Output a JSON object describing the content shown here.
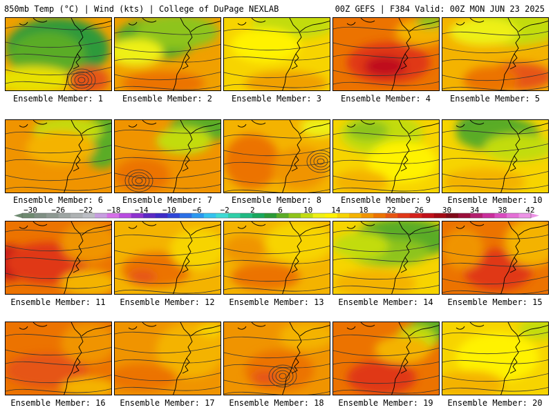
{
  "header": {
    "left": "850mb Temp (°C) | Wind (kts) | College of DuPage NEXLAB",
    "right": "00Z GEFS | F384 Valid: 00Z MON JUN 23 2025"
  },
  "colorbar": {
    "labels": [
      "−30",
      "−26",
      "−22",
      "−18",
      "−14",
      "−10",
      "−6",
      "−2",
      "2",
      "6",
      "10",
      "14",
      "18",
      "22",
      "26",
      "30",
      "34",
      "38",
      "42"
    ],
    "colors": [
      "#6e8a70",
      "#7f8f84",
      "#8e9993",
      "#9ea5a3",
      "#aeb2b3",
      "#bcbec5",
      "#c79ee0",
      "#d66fe8",
      "#b84be0",
      "#8d33cf",
      "#5b29c3",
      "#3d2bc7",
      "#2f46d8",
      "#2a6fe6",
      "#2b98f0",
      "#35c2ee",
      "#3fdad4",
      "#2fcfa8",
      "#1fb982",
      "#18a75d",
      "#2a9a36",
      "#5aac26",
      "#8ec41b",
      "#c2dc10",
      "#eef015",
      "#fff200",
      "#f7d400",
      "#f4b300",
      "#f09400",
      "#ec7300",
      "#e65512",
      "#e03818",
      "#d3211c",
      "#c0101a",
      "#a10a14",
      "#7f0a18",
      "#9a0e3a",
      "#b21e6e",
      "#c92e9b",
      "#da4bc0",
      "#e46fd6",
      "#ed93e6"
    ]
  },
  "members": [
    {
      "label": "Ensemble Member: 1",
      "base": "#f0a000",
      "blobs": [
        [
          "#2f9a3a",
          75,
          45,
          75,
          45
        ],
        [
          "#5aac26",
          60,
          55,
          55,
          35
        ],
        [
          "#e8e000",
          40,
          90,
          60,
          20
        ],
        [
          "#e65512",
          120,
          90,
          30,
          20
        ]
      ]
    },
    {
      "label": "Ensemble Member: 2",
      "base": "#f0a000",
      "blobs": [
        [
          "#5aac26",
          60,
          30,
          60,
          30
        ],
        [
          "#8ec41b",
          90,
          20,
          60,
          25
        ],
        [
          "#eef015",
          30,
          50,
          40,
          20
        ],
        [
          "#ec7300",
          70,
          95,
          60,
          18
        ]
      ]
    },
    {
      "label": "Ensemble Member: 3",
      "base": "#f7d400",
      "blobs": [
        [
          "#c2dc10",
          100,
          10,
          60,
          20
        ],
        [
          "#fff200",
          60,
          40,
          50,
          25
        ],
        [
          "#f0a000",
          90,
          95,
          60,
          18
        ]
      ]
    },
    {
      "label": "Ensemble Member: 4",
      "base": "#ec7300",
      "blobs": [
        [
          "#e03818",
          80,
          65,
          60,
          30
        ],
        [
          "#c0101a",
          75,
          70,
          30,
          15
        ],
        [
          "#f4b300",
          130,
          20,
          40,
          20
        ],
        [
          "#8ec41b",
          140,
          5,
          20,
          10
        ]
      ]
    },
    {
      "label": "Ensemble Member: 5",
      "base": "#f4b300",
      "blobs": [
        [
          "#c2dc10",
          100,
          15,
          70,
          25
        ],
        [
          "#eef015",
          60,
          20,
          50,
          20
        ],
        [
          "#e65512",
          110,
          85,
          50,
          20
        ],
        [
          "#ec7300",
          70,
          90,
          40,
          20
        ]
      ]
    },
    {
      "label": "Ensemble Member: 6",
      "base": "#f09400",
      "blobs": [
        [
          "#5aac26",
          140,
          30,
          30,
          40
        ],
        [
          "#c2dc10",
          90,
          15,
          50,
          20
        ],
        [
          "#f4b300",
          80,
          40,
          50,
          25
        ]
      ]
    },
    {
      "label": "Ensemble Member: 7",
      "base": "#f09400",
      "blobs": [
        [
          "#5aac26",
          130,
          10,
          50,
          20
        ],
        [
          "#c2dc10",
          100,
          30,
          40,
          20
        ],
        [
          "#ec7300",
          40,
          80,
          40,
          25
        ]
      ]
    },
    {
      "label": "Ensemble Member: 8",
      "base": "#f4b300",
      "blobs": [
        [
          "#ec7300",
          40,
          60,
          40,
          40
        ],
        [
          "#f09400",
          110,
          70,
          40,
          30
        ],
        [
          "#eef015",
          140,
          10,
          30,
          15
        ]
      ]
    },
    {
      "label": "Ensemble Member: 9",
      "base": "#f7d400",
      "blobs": [
        [
          "#c2dc10",
          70,
          20,
          60,
          30
        ],
        [
          "#8ec41b",
          50,
          15,
          30,
          15
        ],
        [
          "#fff200",
          100,
          60,
          50,
          30
        ],
        [
          "#f4b300",
          40,
          90,
          40,
          18
        ]
      ]
    },
    {
      "label": "Ensemble Member: 10",
      "base": "#f7d400",
      "blobs": [
        [
          "#2f9a3a",
          70,
          10,
          50,
          20
        ],
        [
          "#5aac26",
          80,
          20,
          60,
          25
        ],
        [
          "#c2dc10",
          110,
          40,
          50,
          20
        ],
        [
          "#f4b300",
          60,
          90,
          60,
          20
        ]
      ]
    },
    {
      "label": "Ensemble Member: 11",
      "base": "#ec7300",
      "blobs": [
        [
          "#c0101a",
          10,
          60,
          30,
          25
        ],
        [
          "#e03818",
          60,
          60,
          60,
          30
        ],
        [
          "#f09400",
          120,
          30,
          40,
          30
        ],
        [
          "#f4b300",
          120,
          90,
          40,
          20
        ]
      ]
    },
    {
      "label": "Ensemble Member: 12",
      "base": "#f4b300",
      "blobs": [
        [
          "#ec7300",
          60,
          70,
          50,
          25
        ],
        [
          "#e65512",
          40,
          80,
          20,
          10
        ],
        [
          "#f7d400",
          120,
          40,
          40,
          30
        ]
      ]
    },
    {
      "label": "Ensemble Member: 13",
      "base": "#f4b300",
      "blobs": [
        [
          "#ec7300",
          60,
          80,
          50,
          20
        ],
        [
          "#f7d400",
          110,
          30,
          50,
          30
        ],
        [
          "#f09400",
          30,
          40,
          30,
          20
        ]
      ]
    },
    {
      "label": "Ensemble Member: 14",
      "base": "#f7d400",
      "blobs": [
        [
          "#5aac26",
          100,
          25,
          70,
          30
        ],
        [
          "#8ec41b",
          80,
          45,
          60,
          20
        ],
        [
          "#c2dc10",
          40,
          35,
          40,
          20
        ],
        [
          "#f4b300",
          60,
          90,
          60,
          20
        ]
      ]
    },
    {
      "label": "Ensemble Member: 15",
      "base": "#ec7300",
      "blobs": [
        [
          "#e03818",
          80,
          70,
          50,
          30
        ],
        [
          "#f4b300",
          130,
          30,
          40,
          35
        ],
        [
          "#f09400",
          30,
          40,
          30,
          30
        ]
      ]
    },
    {
      "label": "Ensemble Member: 16",
      "base": "#ec7300",
      "blobs": [
        [
          "#e65512",
          60,
          70,
          60,
          25
        ],
        [
          "#f09400",
          120,
          30,
          40,
          30
        ],
        [
          "#f4b300",
          120,
          95,
          40,
          15
        ]
      ]
    },
    {
      "label": "Ensemble Member: 17",
      "base": "#f09400",
      "blobs": [
        [
          "#f4b300",
          110,
          40,
          50,
          40
        ],
        [
          "#ec7300",
          40,
          80,
          50,
          20
        ],
        [
          "#f7d400",
          140,
          10,
          20,
          10
        ]
      ]
    },
    {
      "label": "Ensemble Member: 18",
      "base": "#f09400",
      "blobs": [
        [
          "#ec7300",
          80,
          70,
          50,
          30
        ],
        [
          "#f4b300",
          120,
          20,
          40,
          20
        ],
        [
          "#e65512",
          60,
          80,
          20,
          10
        ]
      ]
    },
    {
      "label": "Ensemble Member: 19",
      "base": "#ec7300",
      "blobs": [
        [
          "#e03818",
          70,
          80,
          50,
          25
        ],
        [
          "#5aac26",
          140,
          10,
          30,
          20
        ],
        [
          "#c2dc10",
          120,
          25,
          30,
          20
        ],
        [
          "#f4b300",
          100,
          40,
          40,
          20
        ]
      ]
    },
    {
      "label": "Ensemble Member: 20",
      "base": "#f7d400",
      "blobs": [
        [
          "#fff200",
          80,
          50,
          60,
          35
        ],
        [
          "#c2dc10",
          140,
          10,
          30,
          15
        ],
        [
          "#f4b300",
          40,
          90,
          50,
          20
        ]
      ]
    }
  ]
}
